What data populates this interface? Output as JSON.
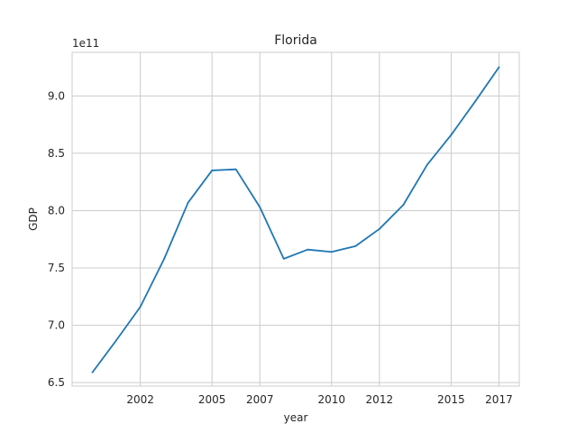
{
  "chart_data": {
    "type": "line",
    "title": "Florida",
    "xlabel": "year",
    "ylabel": "GDP",
    "offset_text": "1e11",
    "x": [
      "2000",
      "2001",
      "2002",
      "2003",
      "2004",
      "2005",
      "2006",
      "2007",
      "2008",
      "2009",
      "2010",
      "2011",
      "2012",
      "2013",
      "2014",
      "2015",
      "2016",
      "2017"
    ],
    "series": [
      {
        "color": "#1f77b4",
        "values": [
          6.59,
          6.87,
          7.16,
          7.58,
          8.07,
          8.35,
          8.36,
          8.03,
          7.58,
          7.66,
          7.64,
          7.69,
          7.84,
          8.05,
          8.4,
          8.66,
          8.95,
          9.25
        ]
      }
    ],
    "x_ticks": [
      "2002",
      "2005",
      "2007",
      "2010",
      "2012",
      "2015",
      "2017"
    ],
    "y_ticks": [
      "6.5",
      "7.0",
      "7.5",
      "8.0",
      "8.5",
      "9.0"
    ],
    "ylim": [
      6.47,
      9.38
    ],
    "grid": true,
    "legend": "none"
  }
}
